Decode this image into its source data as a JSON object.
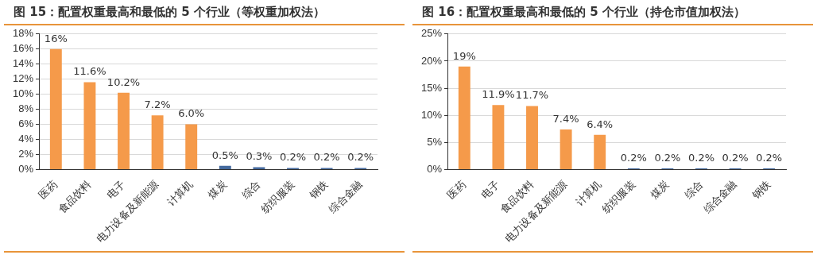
{
  "chart_data": [
    {
      "type": "bar",
      "title": "图 15：配置权重最高和最低的 5 个行业（等权重加权法）",
      "categories": [
        "医药",
        "食品饮料",
        "电子",
        "电力设备及新能源",
        "计算机",
        "煤炭",
        "综合",
        "纺织服装",
        "钢铁",
        "综合金融"
      ],
      "values": [
        16,
        11.6,
        10.2,
        7.2,
        6.0,
        0.5,
        0.3,
        0.2,
        0.2,
        0.2
      ],
      "value_labels": [
        "16%",
        "11.6%",
        "10.2%",
        "7.2%",
        "6.0%",
        "0.5%",
        "0.3%",
        "0.2%",
        "0.2%",
        "0.2%"
      ],
      "colors": [
        "#f59a4a",
        "#f59a4a",
        "#f59a4a",
        "#f59a4a",
        "#f59a4a",
        "#44699d",
        "#44699d",
        "#44699d",
        "#44699d",
        "#44699d"
      ],
      "ylim": [
        0,
        18
      ],
      "yticks": [
        {
          "value": 0,
          "label": "0%"
        },
        {
          "value": 2,
          "label": "2%"
        },
        {
          "value": 4,
          "label": "4%"
        },
        {
          "value": 6,
          "label": "6%"
        },
        {
          "value": 8,
          "label": "8%"
        },
        {
          "value": 10,
          "label": "10%"
        },
        {
          "value": 12,
          "label": "12%"
        },
        {
          "value": 14,
          "label": "14%"
        },
        {
          "value": 16,
          "label": "16%"
        },
        {
          "value": 18,
          "label": "18%"
        }
      ],
      "grid": "y",
      "legend": false
    },
    {
      "type": "bar",
      "title": "图 16：配置权重最高和最低的 5 个行业（持仓市值加权法）",
      "categories": [
        "医药",
        "电子",
        "食品饮料",
        "电力设备及新能源",
        "计算机",
        "纺织服装",
        "煤炭",
        "综合",
        "综合金融",
        "钢铁"
      ],
      "values": [
        19,
        11.9,
        11.7,
        7.4,
        6.4,
        0.2,
        0.2,
        0.2,
        0.2,
        0.2
      ],
      "value_labels": [
        "19%",
        "11.9%",
        "11.7%",
        "7.4%",
        "6.4%",
        "0.2%",
        "0.2%",
        "0.2%",
        "0.2%",
        "0.2%"
      ],
      "colors": [
        "#f59a4a",
        "#f59a4a",
        "#f59a4a",
        "#f59a4a",
        "#f59a4a",
        "#44699d",
        "#44699d",
        "#44699d",
        "#44699d",
        "#44699d"
      ],
      "ylim": [
        0,
        25
      ],
      "yticks": [
        {
          "value": 0,
          "label": "0%"
        },
        {
          "value": 5,
          "label": "5%"
        },
        {
          "value": 10,
          "label": "10%"
        },
        {
          "value": 15,
          "label": "15%"
        },
        {
          "value": 20,
          "label": "20%"
        },
        {
          "value": 25,
          "label": "25%"
        }
      ],
      "grid": "y",
      "legend": false
    }
  ]
}
